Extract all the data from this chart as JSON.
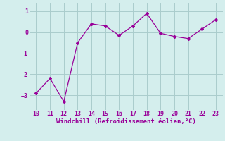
{
  "x": [
    10,
    11,
    12,
    13,
    14,
    15,
    16,
    17,
    18,
    19,
    20,
    21,
    22,
    23
  ],
  "y": [
    -2.9,
    -2.2,
    -3.3,
    -0.5,
    0.4,
    0.3,
    -0.15,
    0.3,
    0.9,
    -0.05,
    -0.2,
    -0.3,
    0.15,
    0.6
  ],
  "line_color": "#990099",
  "marker": "D",
  "marker_size": 2.0,
  "bg_color": "#d4eeed",
  "grid_color": "#aacccc",
  "xlabel": "Windchill (Refroidissement éolien,°C)",
  "xlabel_color": "#990099",
  "xlabel_fontsize": 6.5,
  "tick_color": "#990099",
  "tick_fontsize": 6.0,
  "ylim": [
    -3.7,
    1.4
  ],
  "xlim": [
    9.5,
    23.5
  ],
  "yticks": [
    -3,
    -2,
    -1,
    0,
    1
  ],
  "xticks": [
    10,
    11,
    12,
    13,
    14,
    15,
    16,
    17,
    18,
    19,
    20,
    21,
    22,
    23
  ]
}
